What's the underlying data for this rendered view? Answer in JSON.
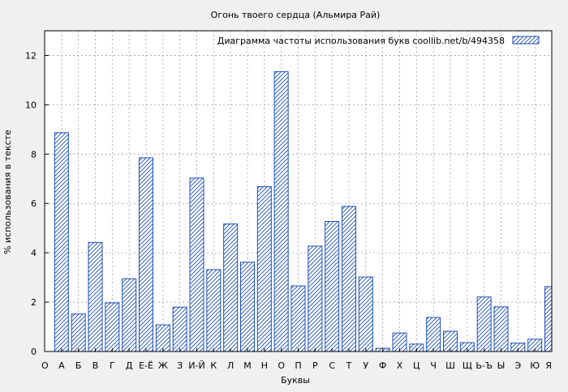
{
  "chart_data": {
    "type": "bar",
    "title": "Огонь твоего сердца (Альмира Рай)",
    "legend": "Диаграмма частоты использования букв  coollib.net/b/494358",
    "legend_position": "top-right",
    "xlabel": "Буквы",
    "ylabel": "% использования в тексте",
    "ylim": [
      0,
      13
    ],
    "yticks": [
      0,
      2,
      4,
      6,
      8,
      10,
      12
    ],
    "grid": true,
    "categories": [
      "О",
      "А",
      "Б",
      "В",
      "Г",
      "Д",
      "Е-Ё",
      "Ж",
      "З",
      "И-Й",
      "К",
      "Л",
      "М",
      "Н",
      "О",
      "П",
      "Р",
      "С",
      "Т",
      "У",
      "Ф",
      "Х",
      "Ц",
      "Ч",
      "Ш",
      "Щ",
      "Ь-Ъ",
      "Ы",
      "Э",
      "Ю",
      "Я"
    ],
    "values": [
      null,
      8.87,
      1.52,
      4.42,
      1.97,
      2.95,
      7.85,
      1.08,
      1.8,
      7.03,
      3.32,
      5.17,
      3.62,
      6.68,
      11.34,
      2.66,
      4.27,
      5.27,
      5.88,
      3.02,
      0.13,
      0.75,
      0.3,
      1.38,
      0.82,
      0.36,
      2.21,
      1.81,
      0.34,
      0.5,
      2.63
    ]
  },
  "colors": {
    "bar_stroke": "#1f4fb8",
    "bar_hatch": "#1f4fb8",
    "bar_fill": "#ffffff",
    "background": "#f0f0f0",
    "grid": "#a0a0a0"
  }
}
